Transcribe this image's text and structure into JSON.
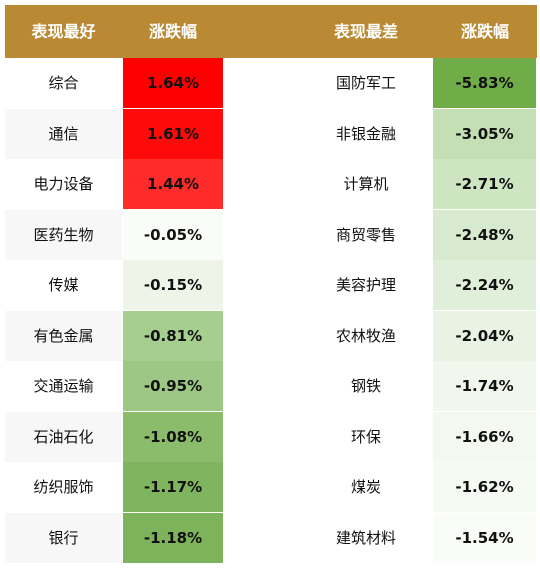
{
  "header": {
    "left_name": "表现最好",
    "left_change": "涨跌幅",
    "right_name": "表现最差",
    "right_change": "涨跌幅"
  },
  "best": [
    {
      "name": "综合",
      "change": "1.64%",
      "color": "#ff0000"
    },
    {
      "name": "通信",
      "change": "1.61%",
      "color": "#ff0a0a"
    },
    {
      "name": "电力设备",
      "change": "1.44%",
      "color": "#ff2a2a"
    },
    {
      "name": "医药生物",
      "change": "-0.05%",
      "color": "#fafcf7"
    },
    {
      "name": "传媒",
      "change": "-0.15%",
      "color": "#eef5e8"
    },
    {
      "name": "有色金属",
      "change": "-0.81%",
      "color": "#a6ce8e"
    },
    {
      "name": "交通运输",
      "change": "-0.95%",
      "color": "#9cc784"
    },
    {
      "name": "石油石化",
      "change": "-1.08%",
      "color": "#8bbc6c"
    },
    {
      "name": "纺织服饰",
      "change": "-1.17%",
      "color": "#7fb55e"
    },
    {
      "name": "银行",
      "change": "-1.18%",
      "color": "#7db35b"
    }
  ],
  "worst": [
    {
      "name": "国防军工",
      "change": "-5.83%",
      "color": "#70ac48"
    },
    {
      "name": "非银金融",
      "change": "-3.05%",
      "color": "#c3dfb3"
    },
    {
      "name": "计算机",
      "change": "-2.71%",
      "color": "#cde5c1"
    },
    {
      "name": "商贸零售",
      "change": "-2.48%",
      "color": "#d7ead0"
    },
    {
      "name": "美容护理",
      "change": "-2.24%",
      "color": "#e0efda"
    },
    {
      "name": "农林牧渔",
      "change": "-2.04%",
      "color": "#e8f3e3"
    },
    {
      "name": "钢铁",
      "change": "-1.74%",
      "color": "#f1f7ed"
    },
    {
      "name": "环保",
      "change": "-1.66%",
      "color": "#f3f9f0"
    },
    {
      "name": "煤炭",
      "change": "-1.62%",
      "color": "#f5faf2"
    },
    {
      "name": "建筑材料",
      "change": "-1.54%",
      "color": "#f9fcf7"
    }
  ]
}
